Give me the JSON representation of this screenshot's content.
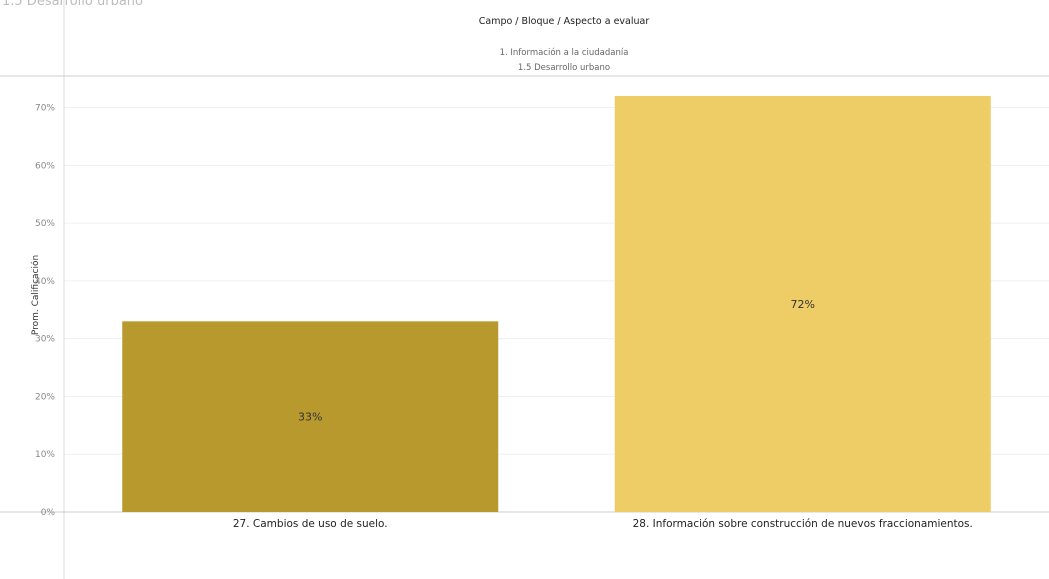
{
  "page": {
    "title": "1.5 Desarrollo urbano"
  },
  "chart_data": {
    "type": "bar",
    "header": {
      "title": "Campo / Bloque / Aspecto a evaluar",
      "lines": [
        "1. Información a la ciudadanía",
        "1.5 Desarrollo urbano"
      ]
    },
    "ylabel": "Prom. Calificación",
    "xlabel": "",
    "ylim": [
      0,
      0.73
    ],
    "yticks": [
      0,
      0.1,
      0.2,
      0.3,
      0.4,
      0.5,
      0.6,
      0.7
    ],
    "ytick_labels": [
      "0%",
      "10%",
      "20%",
      "30%",
      "40%",
      "50%",
      "60%",
      "70%"
    ],
    "categories": [
      "27. Cambios de uso de suelo.",
      "28. Información sobre construcción de nuevos fraccionamientos."
    ],
    "values": [
      0.33,
      0.72
    ],
    "data_labels": [
      "33%",
      "72%"
    ],
    "colors": [
      "#b8992e",
      "#efcd66"
    ],
    "grid": true,
    "legend": "none"
  }
}
